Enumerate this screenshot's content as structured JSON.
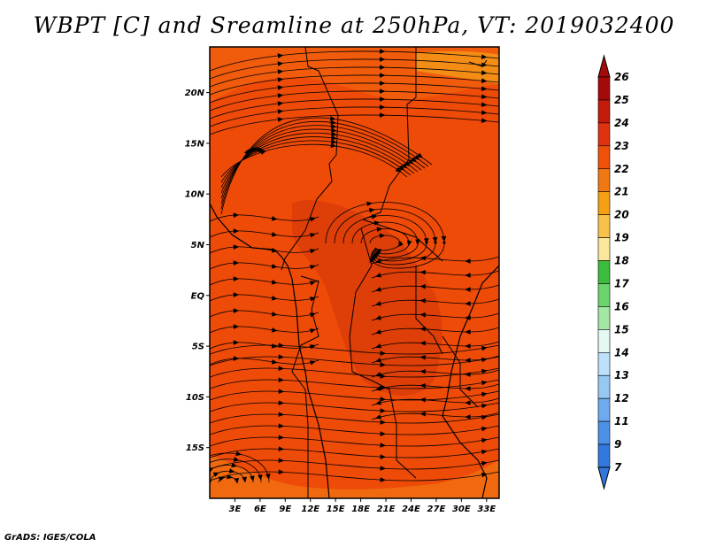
{
  "title": "WBPT [C] and Sreamline at 250hPa, VT: 2019032400",
  "footer": "GrADS: IGES/COLA",
  "map": {
    "lat_ticks": [
      "20N",
      "15N",
      "10N",
      "5N",
      "EQ",
      "5S",
      "10S",
      "15S"
    ],
    "lat_values": [
      20,
      15,
      10,
      5,
      0,
      -5,
      -10,
      -15
    ],
    "lon_ticks": [
      "3E",
      "6E",
      "9E",
      "12E",
      "15E",
      "18E",
      "21E",
      "24E",
      "27E",
      "30E",
      "33E"
    ],
    "lon_values": [
      3,
      6,
      9,
      12,
      15,
      18,
      21,
      24,
      27,
      30,
      33
    ],
    "lat_range": [
      -20,
      24.5
    ],
    "lon_range": [
      0,
      34.5
    ],
    "colors": {
      "base": "#ee4a08",
      "dark": "#d2350a",
      "light": "#f26a10",
      "border": "#000000"
    }
  },
  "colorbar": {
    "labels": [
      "26",
      "25",
      "24",
      "23",
      "22",
      "21",
      "20",
      "19",
      "18",
      "17",
      "16",
      "15",
      "14",
      "13",
      "12",
      "11",
      "9",
      "7"
    ],
    "colors": [
      "#a50a0a",
      "#c41a0a",
      "#de3210",
      "#f0500a",
      "#f07812",
      "#f4a012",
      "#f8c24a",
      "#fce89a",
      "#3cbc3c",
      "#6cd46c",
      "#a4e6a4",
      "#e4f8f4",
      "#bee0fa",
      "#96c8f4",
      "#6eaaee",
      "#4e90e6",
      "#3278dc"
    ]
  }
}
